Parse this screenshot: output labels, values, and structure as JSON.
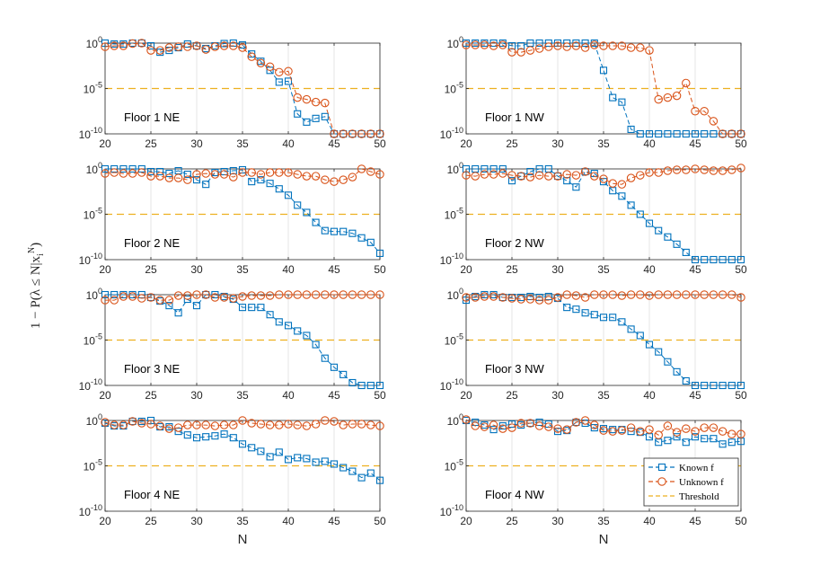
{
  "colors": {
    "known": "#0072BD",
    "unknown": "#D95319",
    "threshold": "#EDB120",
    "grid": "#e6e6e6",
    "axis": "#262626"
  },
  "figure": {
    "ylabel": "1 − P(λ ≤ N|x",
    "ylabel_sub": "i",
    "ylabel_sup": "N",
    "ylabel_end": ")"
  },
  "chart_data": [
    {
      "type": "line",
      "title": "Floor 1 NE",
      "xlabel": "",
      "ylabel": "",
      "xlim": [
        20,
        50
      ],
      "ylim_exp": [
        -10,
        0
      ],
      "yscale": "log",
      "threshold_exp": -5,
      "x_ticks": [
        "20",
        "25",
        "30",
        "35",
        "40",
        "45",
        "50"
      ],
      "y_ticks": [
        {
          "base": "10",
          "exp": "0"
        },
        {
          "base": "10",
          "exp": "-5"
        },
        {
          "base": "10",
          "exp": "-10"
        }
      ],
      "x": [
        20,
        21,
        22,
        23,
        24,
        25,
        26,
        27,
        28,
        29,
        30,
        31,
        32,
        33,
        34,
        35,
        36,
        37,
        38,
        39,
        40,
        41,
        42,
        43,
        44,
        45,
        46,
        47,
        48,
        49,
        50
      ],
      "series": [
        {
          "name": "Known f",
          "log10": [
            0,
            -0.1,
            -0.1,
            0,
            0,
            -0.3,
            -1,
            -0.8,
            -0.5,
            -0.1,
            -0.3,
            -0.6,
            -0.3,
            -0.05,
            0,
            -0.2,
            -1.2,
            -2,
            -3,
            -4.3,
            -4.2,
            -7.8,
            -8.7,
            -8.3,
            -8.1,
            -10,
            -10,
            -10,
            -10,
            -10,
            -10
          ]
        },
        {
          "name": "Unknown f",
          "log10": [
            -0.4,
            -0.3,
            -0.3,
            -0.05,
            0,
            -0.8,
            -0.8,
            -0.5,
            -0.4,
            -0.4,
            -0.3,
            -0.7,
            -0.4,
            -0.3,
            -0.3,
            -0.5,
            -1.5,
            -2.2,
            -2.6,
            -3.2,
            -3.1,
            -6,
            -6.2,
            -6.5,
            -6.6,
            -10,
            -10,
            -10,
            -10,
            -10,
            -10
          ]
        }
      ]
    },
    {
      "type": "line",
      "title": "Floor 1 NW",
      "xlabel": "",
      "ylabel": "",
      "xlim": [
        20,
        50
      ],
      "ylim_exp": [
        -10,
        0
      ],
      "yscale": "log",
      "threshold_exp": -5,
      "x_ticks": [
        "20",
        "25",
        "30",
        "35",
        "40",
        "45",
        "50"
      ],
      "y_ticks": [
        {
          "base": "10",
          "exp": "0"
        },
        {
          "base": "10",
          "exp": "-5"
        },
        {
          "base": "10",
          "exp": "-10"
        }
      ],
      "x": [
        20,
        21,
        22,
        23,
        24,
        25,
        26,
        27,
        28,
        29,
        30,
        31,
        32,
        33,
        34,
        35,
        36,
        37,
        38,
        39,
        40,
        41,
        42,
        43,
        44,
        45,
        46,
        47,
        48,
        49,
        50
      ],
      "series": [
        {
          "name": "Known f",
          "log10": [
            0,
            0,
            0,
            0,
            0,
            -0.3,
            -0.3,
            0,
            0,
            0,
            0,
            0,
            0,
            0,
            0,
            -3,
            -6,
            -6.5,
            -9.5,
            -10,
            -10,
            -10,
            -10,
            -10,
            -10,
            -10,
            -10,
            -10,
            -10,
            -10,
            -10
          ]
        },
        {
          "name": "Unknown f",
          "log10": [
            -0.2,
            -0.2,
            -0.2,
            -0.3,
            -0.2,
            -1,
            -1,
            -0.8,
            -0.6,
            -0.4,
            -0.3,
            -0.4,
            -0.3,
            -0.5,
            -0.2,
            -0.3,
            -0.3,
            -0.3,
            -0.5,
            -0.5,
            -0.8,
            -6.2,
            -6,
            -5.8,
            -4.4,
            -7.5,
            -7.5,
            -8.6,
            -10,
            -10,
            -10
          ]
        }
      ]
    },
    {
      "type": "line",
      "title": "Floor 2 NE",
      "xlabel": "",
      "ylabel": "",
      "xlim": [
        20,
        50
      ],
      "ylim_exp": [
        -10,
        0
      ],
      "yscale": "log",
      "threshold_exp": -5,
      "x_ticks": [
        "20",
        "25",
        "30",
        "35",
        "40",
        "45",
        "50"
      ],
      "y_ticks": [
        {
          "base": "10",
          "exp": "0"
        },
        {
          "base": "10",
          "exp": "-5"
        },
        {
          "base": "10",
          "exp": "-10"
        }
      ],
      "x": [
        20,
        21,
        22,
        23,
        24,
        25,
        26,
        27,
        28,
        29,
        30,
        31,
        32,
        33,
        34,
        35,
        36,
        37,
        38,
        39,
        40,
        41,
        42,
        43,
        44,
        45,
        46,
        47,
        48,
        49,
        50
      ],
      "series": [
        {
          "name": "Known f",
          "log10": [
            0,
            0,
            0,
            0,
            0,
            -0.3,
            -0.3,
            -0.5,
            -0.2,
            -0.6,
            -1.2,
            -1.7,
            -0.4,
            -0.3,
            -0.2,
            -0.1,
            -1.4,
            -1.2,
            -1.6,
            -2.2,
            -2.9,
            -4,
            -4.8,
            -5.9,
            -6.8,
            -6.9,
            -6.9,
            -7.1,
            -7.6,
            -8.1,
            -9.3
          ]
        },
        {
          "name": "Unknown f",
          "log10": [
            -0.5,
            -0.4,
            -0.5,
            -0.5,
            -0.4,
            -0.8,
            -0.8,
            -1,
            -1,
            -1.2,
            -0.6,
            -0.5,
            -0.6,
            -0.6,
            -0.9,
            -0.4,
            -0.4,
            -0.6,
            -0.4,
            -0.4,
            -0.4,
            -0.6,
            -0.8,
            -0.8,
            -1.2,
            -1.4,
            -1.2,
            -0.9,
            0,
            -0.3,
            -0.6
          ]
        }
      ]
    },
    {
      "type": "line",
      "title": "Floor 2 NW",
      "xlabel": "",
      "ylabel": "",
      "xlim": [
        20,
        50
      ],
      "ylim_exp": [
        -10,
        0
      ],
      "yscale": "log",
      "threshold_exp": -5,
      "x_ticks": [
        "20",
        "25",
        "30",
        "35",
        "40",
        "45",
        "50"
      ],
      "y_ticks": [
        {
          "base": "10",
          "exp": "0"
        },
        {
          "base": "10",
          "exp": "-5"
        },
        {
          "base": "10",
          "exp": "-10"
        }
      ],
      "x": [
        20,
        21,
        22,
        23,
        24,
        25,
        26,
        27,
        28,
        29,
        30,
        31,
        32,
        33,
        34,
        35,
        36,
        37,
        38,
        39,
        40,
        41,
        42,
        43,
        44,
        45,
        46,
        47,
        48,
        49,
        50
      ],
      "series": [
        {
          "name": "Known f",
          "log10": [
            0,
            0,
            0,
            0,
            0,
            -1.3,
            -0.8,
            -0.3,
            0,
            0,
            -0.8,
            -1.3,
            -2,
            -0.3,
            -0.5,
            -1.4,
            -2.4,
            -3,
            -4,
            -5,
            -6,
            -6.8,
            -7.5,
            -8.3,
            -9.2,
            -10,
            -10,
            -10,
            -10,
            -10,
            -10
          ]
        },
        {
          "name": "Unknown f",
          "log10": [
            -0.7,
            -0.8,
            -0.6,
            -0.6,
            -0.5,
            -0.7,
            -0.8,
            -0.9,
            -0.7,
            -0.8,
            -0.8,
            -0.6,
            -0.7,
            -0.3,
            -0.8,
            -1.1,
            -1.6,
            -1.7,
            -1,
            -0.7,
            -0.4,
            -0.4,
            -0.2,
            -0.1,
            -0.1,
            0,
            -0.1,
            -0.2,
            -0.2,
            -0.1,
            0.1
          ]
        }
      ]
    },
    {
      "type": "line",
      "title": "Floor 3 NE",
      "xlabel": "",
      "ylabel": "",
      "xlim": [
        20,
        50
      ],
      "ylim_exp": [
        -10,
        0
      ],
      "yscale": "log",
      "threshold_exp": -5,
      "x_ticks": [
        "20",
        "25",
        "30",
        "35",
        "40",
        "45",
        "50"
      ],
      "y_ticks": [
        {
          "base": "10",
          "exp": "0"
        },
        {
          "base": "10",
          "exp": "-5"
        },
        {
          "base": "10",
          "exp": "-10"
        }
      ],
      "x": [
        20,
        21,
        22,
        23,
        24,
        25,
        26,
        27,
        28,
        29,
        30,
        31,
        32,
        33,
        34,
        35,
        36,
        37,
        38,
        39,
        40,
        41,
        42,
        43,
        44,
        45,
        46,
        47,
        48,
        49,
        50
      ],
      "series": [
        {
          "name": "Known f",
          "log10": [
            0,
            0,
            0,
            0,
            0,
            -0.3,
            -0.7,
            -1.2,
            -2,
            -0.5,
            -1.2,
            0,
            0,
            -0.2,
            -0.5,
            -1.4,
            -1.4,
            -1.4,
            -2.2,
            -3,
            -3.4,
            -4,
            -4.5,
            -5.5,
            -7,
            -8,
            -8.8,
            -9.7,
            -10,
            -10,
            -10
          ]
        },
        {
          "name": "Unknown f",
          "log10": [
            -0.6,
            -0.6,
            -0.2,
            -0.2,
            -0.4,
            -0.3,
            -0.6,
            -0.6,
            -0.1,
            -0.1,
            0,
            0,
            -0.3,
            -0.3,
            -0.4,
            -0.2,
            -0.1,
            -0.1,
            -0.1,
            0,
            0,
            0,
            0,
            0,
            0,
            0,
            0,
            0,
            0,
            0,
            0
          ]
        }
      ]
    },
    {
      "type": "line",
      "title": "Floor 3 NW",
      "xlabel": "",
      "ylabel": "",
      "xlim": [
        20,
        50
      ],
      "ylim_exp": [
        -10,
        0
      ],
      "yscale": "log",
      "threshold_exp": -5,
      "x_ticks": [
        "20",
        "25",
        "30",
        "35",
        "40",
        "45",
        "50"
      ],
      "y_ticks": [
        {
          "base": "10",
          "exp": "0"
        },
        {
          "base": "10",
          "exp": "-5"
        },
        {
          "base": "10",
          "exp": "-10"
        }
      ],
      "x": [
        20,
        21,
        22,
        23,
        24,
        25,
        26,
        27,
        28,
        29,
        30,
        31,
        32,
        33,
        34,
        35,
        36,
        37,
        38,
        39,
        40,
        41,
        42,
        43,
        44,
        45,
        46,
        47,
        48,
        49,
        50
      ],
      "series": [
        {
          "name": "Known f",
          "log10": [
            -0.6,
            -0.2,
            0,
            0,
            -0.3,
            -0.3,
            -0.3,
            -0.2,
            -0.3,
            -0.2,
            -0.4,
            -1.4,
            -1.6,
            -2,
            -2.2,
            -2.5,
            -2.5,
            -3,
            -3.8,
            -4.5,
            -5.5,
            -6.3,
            -7.4,
            -8.5,
            -9.5,
            -10,
            -10,
            -10,
            -10,
            -10,
            -10
          ]
        },
        {
          "name": "Unknown f",
          "log10": [
            -0.3,
            -0.3,
            -0.2,
            -0.2,
            -0.3,
            -0.4,
            -0.5,
            -0.5,
            -0.6,
            -0.6,
            -0.3,
            0,
            -0.1,
            -0.3,
            0,
            0,
            0,
            -0.1,
            0,
            0,
            -0.1,
            0,
            0,
            0,
            0,
            0,
            0,
            0,
            0,
            0,
            -0.3
          ]
        }
      ]
    },
    {
      "type": "line",
      "title": "Floor 4 NE",
      "xlabel": "N",
      "ylabel": "",
      "xlim": [
        20,
        50
      ],
      "ylim_exp": [
        -10,
        0
      ],
      "yscale": "log",
      "threshold_exp": -5,
      "x_ticks": [
        "20",
        "25",
        "30",
        "35",
        "40",
        "45",
        "50"
      ],
      "y_ticks": [
        {
          "base": "10",
          "exp": "0"
        },
        {
          "base": "10",
          "exp": "-5"
        },
        {
          "base": "10",
          "exp": "-10"
        }
      ],
      "x": [
        20,
        21,
        22,
        23,
        24,
        25,
        26,
        27,
        28,
        29,
        30,
        31,
        32,
        33,
        34,
        35,
        36,
        37,
        38,
        39,
        40,
        41,
        42,
        43,
        44,
        45,
        46,
        47,
        48,
        49,
        50
      ],
      "series": [
        {
          "name": "Known f",
          "log10": [
            -0.3,
            -0.6,
            -0.6,
            -0.1,
            -0.1,
            0,
            -0.7,
            -0.7,
            -1.2,
            -1.6,
            -1.9,
            -1.8,
            -1.7,
            -1.5,
            -1.9,
            -2.6,
            -3,
            -3.4,
            -4,
            -3.5,
            -4.3,
            -4.1,
            -4.2,
            -4.6,
            -4.5,
            -4.8,
            -5.2,
            -5.6,
            -6.3,
            -5.8,
            -6.6
          ]
        },
        {
          "name": "Unknown f",
          "log10": [
            -0.2,
            -0.5,
            -0.5,
            -0.1,
            -0.3,
            -0.4,
            -0.6,
            -0.9,
            -0.8,
            -0.5,
            -0.5,
            -0.5,
            -0.6,
            -0.5,
            -0.5,
            0,
            -0.3,
            -0.4,
            -0.5,
            -0.5,
            -0.4,
            -0.5,
            -0.6,
            -0.4,
            0,
            -0.1,
            -0.5,
            -0.4,
            -0.4,
            -0.5,
            -0.6
          ]
        }
      ]
    },
    {
      "type": "line",
      "title": "Floor 4 NW",
      "xlabel": "N",
      "ylabel": "",
      "xlim": [
        20,
        50
      ],
      "ylim_exp": [
        -10,
        0
      ],
      "yscale": "log",
      "threshold_exp": -5,
      "x_ticks": [
        "20",
        "25",
        "30",
        "35",
        "40",
        "45",
        "50"
      ],
      "y_ticks": [
        {
          "base": "10",
          "exp": "0"
        },
        {
          "base": "10",
          "exp": "-5"
        },
        {
          "base": "10",
          "exp": "-10"
        }
      ],
      "legend": {
        "position": "bottom-right",
        "entries": [
          "Known f",
          "Unknown f",
          "Threshold"
        ]
      },
      "x": [
        20,
        21,
        22,
        23,
        24,
        25,
        26,
        27,
        28,
        29,
        30,
        31,
        32,
        33,
        34,
        35,
        36,
        37,
        38,
        39,
        40,
        41,
        42,
        43,
        44,
        45,
        46,
        47,
        48,
        49,
        50
      ],
      "series": [
        {
          "name": "Known f",
          "log10": [
            0,
            -0.2,
            -0.5,
            -1,
            -0.6,
            -0.4,
            -0.5,
            -0.3,
            -0.2,
            -0.4,
            -1.2,
            -1.1,
            -0.2,
            -0.3,
            -0.8,
            -0.9,
            -1,
            -1,
            -1.2,
            -1.3,
            -1.8,
            -2.4,
            -2.2,
            -1.8,
            -2.4,
            -1.8,
            -2,
            -2,
            -2.6,
            -2.4,
            -2.3
          ]
        },
        {
          "name": "Unknown f",
          "log10": [
            0.1,
            -0.6,
            -0.7,
            -0.5,
            -0.9,
            -0.8,
            -0.3,
            -0.3,
            -0.6,
            -0.7,
            -0.9,
            -1,
            -0.2,
            0,
            -0.5,
            -1.1,
            -1.2,
            -1.1,
            -0.8,
            -1.2,
            -1,
            -1.6,
            -0.6,
            -1.3,
            -0.9,
            -1.2,
            -0.8,
            -0.8,
            -1.2,
            -1.5,
            -1.5
          ]
        }
      ]
    }
  ]
}
